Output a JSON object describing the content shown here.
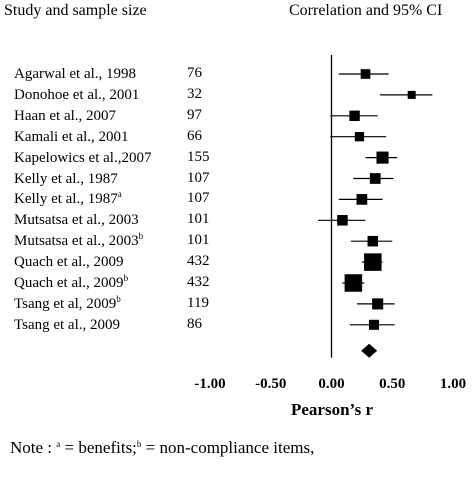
{
  "headers": {
    "left": "Study and sample size",
    "right": "Correlation and 95% CI"
  },
  "chart_data": {
    "type": "forest",
    "xlabel": "Pearson’s r",
    "xlim": [
      -1.0,
      1.0
    ],
    "ticks": [
      "-1.00",
      "-0.50",
      "0.00",
      "0.50",
      "1.00"
    ],
    "tick_values": [
      -1.0,
      -0.5,
      0.0,
      0.5,
      1.0
    ],
    "reference_line": 0,
    "studies": [
      {
        "name": "Agarwal et al., 1998",
        "sup": "",
        "n": "76",
        "r": 0.28,
        "lo": 0.06,
        "hi": 0.47
      },
      {
        "name": "Donohoe et al., 2001",
        "sup": "",
        "n": "32",
        "r": 0.66,
        "lo": 0.4,
        "hi": 0.83
      },
      {
        "name": "Haan et al., 2007",
        "sup": "",
        "n": "97",
        "r": 0.19,
        "lo": -0.01,
        "hi": 0.38
      },
      {
        "name": "Kamali et al., 2001",
        "sup": "",
        "n": "66",
        "r": 0.23,
        "lo": -0.01,
        "hi": 0.45
      },
      {
        "name": "Kapelowics et al.,2007",
        "sup": "",
        "n": "155",
        "r": 0.42,
        "lo": 0.28,
        "hi": 0.54
      },
      {
        "name": "Kelly et al., 1987",
        "sup": "",
        "n": "107",
        "r": 0.36,
        "lo": 0.18,
        "hi": 0.51
      },
      {
        "name": "Kelly et al., 1987",
        "sup": "a",
        "n": "107",
        "r": 0.25,
        "lo": 0.06,
        "hi": 0.42
      },
      {
        "name": "Mutsatsa et al., 2003",
        "sup": "",
        "n": "101",
        "r": 0.09,
        "lo": -0.11,
        "hi": 0.28
      },
      {
        "name": "Mutsatsa et al., 2003",
        "sup": "b",
        "n": "101",
        "r": 0.34,
        "lo": 0.16,
        "hi": 0.5
      },
      {
        "name": "Quach et al., 2009",
        "sup": "",
        "n": "432",
        "r": 0.34,
        "lo": 0.25,
        "hi": 0.42
      },
      {
        "name": "Quach et al., 2009",
        "sup": "b",
        "n": "432",
        "r": 0.18,
        "lo": 0.09,
        "hi": 0.27
      },
      {
        "name": "Tsang et al, 2009",
        "sup": "b",
        "n": "119",
        "r": 0.38,
        "lo": 0.21,
        "hi": 0.52
      },
      {
        "name": "Tsang et al., 2009",
        "sup": "",
        "n": "86",
        "r": 0.35,
        "lo": 0.15,
        "hi": 0.52
      }
    ],
    "pooled": {
      "r": 0.31
    }
  },
  "note": {
    "prefix": "Note : ",
    "sup_a": "a",
    "text_a": " = benefits;",
    "sup_b": "b",
    "text_b": " = non-compliance items,"
  }
}
